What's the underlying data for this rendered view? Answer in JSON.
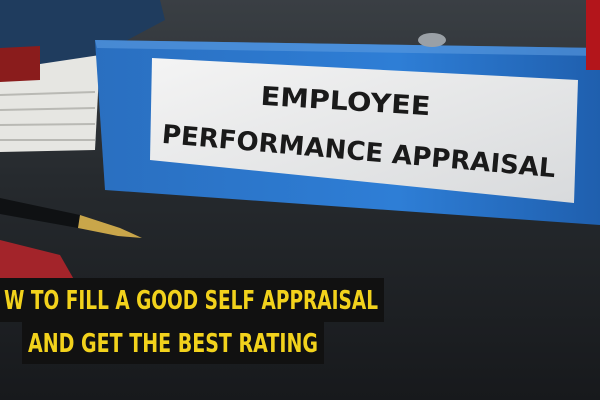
{
  "label": {
    "line1": "EMPLOYEE",
    "line2": "PERFORMANCE APPRAISAL"
  },
  "caption": {
    "line1": "W TO FILL A GOOD SELF APPRAISAL",
    "line2": "AND GET THE BEST RATING"
  }
}
